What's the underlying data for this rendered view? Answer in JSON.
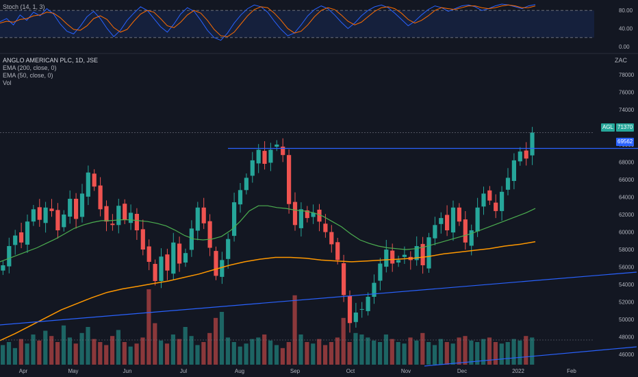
{
  "symbol_title": "ANGLO AMERICAN PLC, 1D, JSE",
  "indicators": {
    "stoch": "Stoch (14, 1, 3)",
    "ema200": "EMA (200, close, 0)",
    "ema50": "EMA (50, close, 0)",
    "vol": "Vol"
  },
  "currency": "ZAC",
  "price_tag": {
    "symbol": "AGL",
    "price": "71370"
  },
  "level_tag": "69562",
  "colors": {
    "background": "#131722",
    "up": "#26a69a",
    "down": "#ef5350",
    "ema50": "#4caf50",
    "ema200": "#ff9800",
    "trendline": "#2962ff",
    "stoch_k": "#2962ff",
    "stoch_d": "#ff6d00"
  },
  "chart_data": [
    {
      "type": "line",
      "name": "stoch",
      "yticks": [
        "80.00",
        "40.00",
        "0.00"
      ],
      "ylim": [
        0,
        100
      ],
      "k": [
        55,
        62,
        48,
        70,
        58,
        76,
        68,
        84,
        72,
        50,
        34,
        28,
        45,
        66,
        78,
        62,
        40,
        22,
        36,
        58,
        74,
        88,
        80,
        62,
        44,
        32,
        50,
        72,
        86,
        78,
        58,
        36,
        20,
        14,
        30,
        52,
        70,
        84,
        92,
        88,
        76,
        56,
        38,
        24,
        30,
        48,
        68,
        82,
        90,
        84,
        70,
        54,
        40,
        52,
        68,
        80,
        88,
        92,
        86,
        74,
        60,
        46,
        56,
        70,
        82,
        90,
        86,
        78,
        84,
        90,
        92,
        88,
        80,
        84,
        90,
        94,
        92,
        88,
        84,
        90,
        93
      ],
      "d": [
        52,
        56,
        54,
        60,
        62,
        68,
        70,
        76,
        74,
        64,
        50,
        38,
        36,
        46,
        62,
        68,
        60,
        42,
        32,
        38,
        56,
        72,
        80,
        76,
        62,
        46,
        42,
        54,
        70,
        80,
        74,
        58,
        38,
        24,
        22,
        32,
        50,
        68,
        82,
        88,
        86,
        74,
        58,
        40,
        30,
        34,
        48,
        66,
        80,
        86,
        82,
        70,
        56,
        48,
        54,
        66,
        78,
        86,
        88,
        84,
        74,
        60,
        52,
        58,
        68,
        80,
        86,
        84,
        82,
        86,
        90,
        90,
        86,
        84,
        86,
        90,
        92,
        90,
        86,
        86,
        90
      ]
    },
    {
      "type": "candlestick",
      "name": "AGL daily",
      "yticks": [
        "78000",
        "76000",
        "74000",
        "72000",
        "70000",
        "68000",
        "66000",
        "64000",
        "62000",
        "60000",
        "58000",
        "56000",
        "54000",
        "52000",
        "50000",
        "48000",
        "46000"
      ],
      "ylim": [
        45000,
        79000
      ],
      "x_labels": [
        "Apr",
        "May",
        "Jun",
        "Jul",
        "Aug",
        "Sep",
        "Oct",
        "Nov",
        "Dec",
        "2022",
        "Feb"
      ],
      "close": [
        56200,
        58400,
        59600,
        58800,
        61200,
        62600,
        61400,
        62800,
        62400,
        60200,
        62000,
        63800,
        61500,
        64400,
        66800,
        65200,
        62600,
        61200,
        60800,
        63000,
        61400,
        62200,
        60200,
        58000,
        56600,
        54400,
        57200,
        55600,
        58800,
        56400,
        57600,
        60400,
        62800,
        61000,
        58200,
        55000,
        56800,
        59200,
        63400,
        64800,
        66200,
        68200,
        69400,
        67800,
        69400,
        70000,
        68800,
        63200,
        60800,
        62600,
        61600,
        62200,
        61200,
        60000,
        58600,
        56800,
        52800,
        49600,
        50800,
        51200,
        52600,
        54200,
        56400,
        58000,
        56400,
        56800,
        57400,
        56800,
        58400,
        56200,
        59400,
        60800,
        61600,
        60200,
        62800,
        61200,
        58800,
        60200,
        62800,
        64400,
        63600,
        62400,
        64600,
        66200,
        68200,
        69200,
        68400,
        71370
      ],
      "ema50": [
        56600,
        57000,
        57400,
        57800,
        58200,
        58700,
        59200,
        59800,
        60400,
        60800,
        61100,
        61300,
        61300,
        61400,
        61400,
        61300,
        61200,
        61000,
        60700,
        60200,
        59600,
        59200,
        59100,
        59200,
        59500,
        60200,
        61200,
        62400,
        63000,
        63000,
        62800,
        62700,
        62500,
        62400,
        62200,
        61800,
        61200,
        60600,
        59800,
        59100,
        58700,
        58400,
        58200,
        58100,
        58000,
        58100,
        58300,
        58600,
        58900,
        59200,
        59500,
        59800,
        60200,
        60600,
        61000,
        61400,
        61800,
        62200,
        62700
      ],
      "ema200": [
        47600,
        48400,
        49300,
        50200,
        51100,
        51800,
        52500,
        53100,
        53500,
        53800,
        54100,
        54400,
        54800,
        55200,
        55700,
        56200,
        56600,
        56900,
        57100,
        57100,
        57000,
        56800,
        56700,
        56600,
        56700,
        56800,
        56900,
        57000,
        57200,
        57500,
        57700,
        57900,
        58100,
        58400,
        58600,
        58900
      ],
      "volume": [
        0.26,
        0.3,
        0.22,
        0.34,
        0.28,
        0.4,
        0.32,
        0.45,
        0.38,
        0.3,
        0.52,
        0.36,
        0.28,
        0.42,
        0.5,
        0.34,
        0.3,
        0.26,
        0.38,
        0.46,
        0.3,
        0.24,
        0.28,
        0.36,
        1.0,
        0.55,
        0.32,
        0.28,
        0.4,
        0.34,
        0.5,
        0.38,
        0.26,
        0.3,
        0.42,
        0.62,
        0.7,
        0.36,
        0.3,
        0.24,
        0.28,
        0.34,
        0.36,
        0.4,
        0.32,
        0.26,
        0.22,
        0.3,
        0.92,
        0.4,
        0.3,
        0.28,
        0.34,
        0.26,
        0.3,
        0.36,
        0.62,
        0.3,
        0.42,
        0.4,
        0.36,
        0.32,
        0.3,
        0.4,
        0.34,
        0.3,
        0.28,
        0.36,
        0.32,
        0.42,
        0.3,
        0.26,
        0.34,
        0.3,
        0.28,
        0.36,
        0.38,
        0.32,
        0.3,
        0.34,
        0.36,
        0.3,
        0.28,
        0.3,
        0.34,
        0.32,
        0.38,
        0.36
      ]
    }
  ]
}
